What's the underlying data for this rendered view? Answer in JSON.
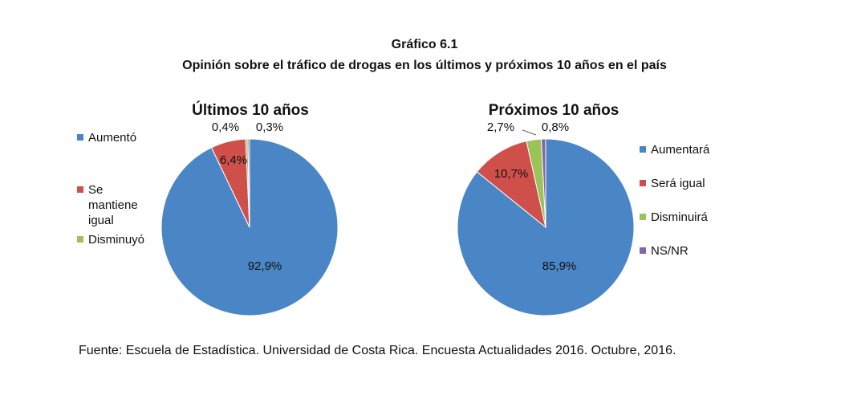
{
  "figure": {
    "number": "Gráfico 6.1",
    "title": "Opinión sobre el tráfico de drogas en los últimos y próximos 10 años en el país",
    "source": "Fuente: Escuela de Estadística. Universidad de Costa Rica. Encuesta Actualidades 2016. Octubre, 2016."
  },
  "chart_data": [
    {
      "type": "pie",
      "title": "Últimos 10 años",
      "legend_position": "left",
      "slices": [
        {
          "label": "Aumentó",
          "value": 92.9,
          "value_label": "92,9%",
          "color": "#4a86c6"
        },
        {
          "label": "Se mantiene igual",
          "legend_lines": [
            "Se",
            "mantiene",
            "igual"
          ],
          "value": 6.4,
          "value_label": "6,4%",
          "color": "#cf504b"
        },
        {
          "label": "Disminuyó",
          "value": 0.4,
          "value_label": "0,4%",
          "color": "#9cc25a"
        },
        {
          "label": "",
          "value": 0.3,
          "value_label": "0,3%",
          "color": "#8466a8"
        }
      ]
    },
    {
      "type": "pie",
      "title": "Próximos 10 años",
      "legend_position": "right",
      "slices": [
        {
          "label": "Aumentará",
          "value": 85.9,
          "value_label": "85,9%",
          "color": "#4a86c6"
        },
        {
          "label": "Será igual",
          "value": 10.7,
          "value_label": "10,7%",
          "color": "#cf504b"
        },
        {
          "label": "Disminuirá",
          "value": 2.7,
          "value_label": "2,7%",
          "color": "#9cc25a"
        },
        {
          "label": "NS/NR",
          "value": 0.8,
          "value_label": "0,8%",
          "color": "#8466a8"
        }
      ]
    }
  ]
}
